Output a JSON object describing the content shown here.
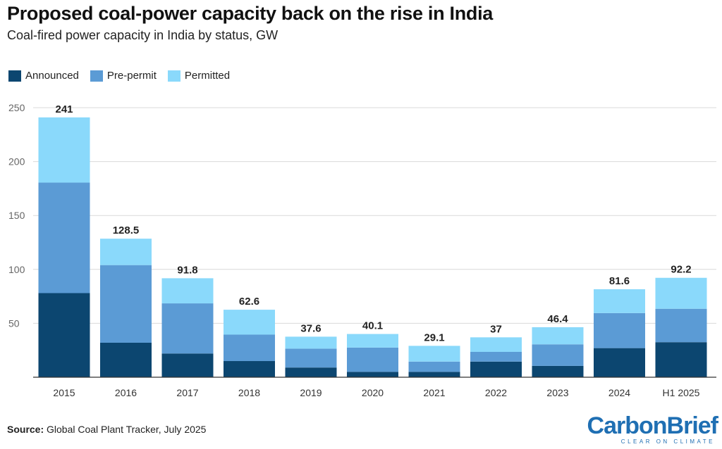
{
  "header": {
    "title": "Proposed coal-power capacity back on the rise in India",
    "subtitle": "Coal-fired power capacity in India by status, GW"
  },
  "legend": [
    {
      "label": "Announced",
      "color": "#0c4670"
    },
    {
      "label": "Pre-permit",
      "color": "#5b9bd5"
    },
    {
      "label": "Permitted",
      "color": "#8ad9fb"
    }
  ],
  "footer": {
    "source_label": "Source:",
    "source_text": "Global Coal Plant Tracker, July 2025",
    "brand_carbon": "Carbon",
    "brand_brief": "Brief",
    "brand_tagline": "CLEAR ON CLIMATE"
  },
  "chart_data": {
    "type": "bar",
    "stacked": true,
    "title": "Proposed coal-power capacity back on the rise in India",
    "subtitle": "Coal-fired power capacity in India by status, GW",
    "xlabel": "",
    "ylabel": "",
    "ylim": [
      0,
      250
    ],
    "yticks": [
      50,
      100,
      150,
      200,
      250
    ],
    "grid": true,
    "legend_position": "top-left",
    "categories": [
      "2015",
      "2016",
      "2017",
      "2018",
      "2019",
      "2020",
      "2021",
      "2022",
      "2023",
      "2024",
      "H1 2025"
    ],
    "series": [
      {
        "name": "Announced",
        "color": "#0c4670",
        "values": [
          78,
          32,
          22,
          15,
          9,
          5,
          5,
          14.5,
          10.5,
          27,
          32.5
        ]
      },
      {
        "name": "Pre-permit",
        "color": "#5b9bd5",
        "values": [
          102.5,
          72,
          46.5,
          24.5,
          17.5,
          22.5,
          9.5,
          9,
          20,
          32.5,
          31
        ]
      },
      {
        "name": "Permitted",
        "color": "#8ad9fb",
        "values": [
          60.5,
          24.5,
          23.3,
          23.1,
          11.1,
          12.6,
          14.6,
          13.5,
          15.9,
          22.1,
          28.7
        ]
      }
    ],
    "totals": [
      "241",
      "128.5",
      "91.8",
      "62.6",
      "37.6",
      "40.1",
      "29.1",
      "37",
      "46.4",
      "81.6",
      "92.2"
    ]
  }
}
